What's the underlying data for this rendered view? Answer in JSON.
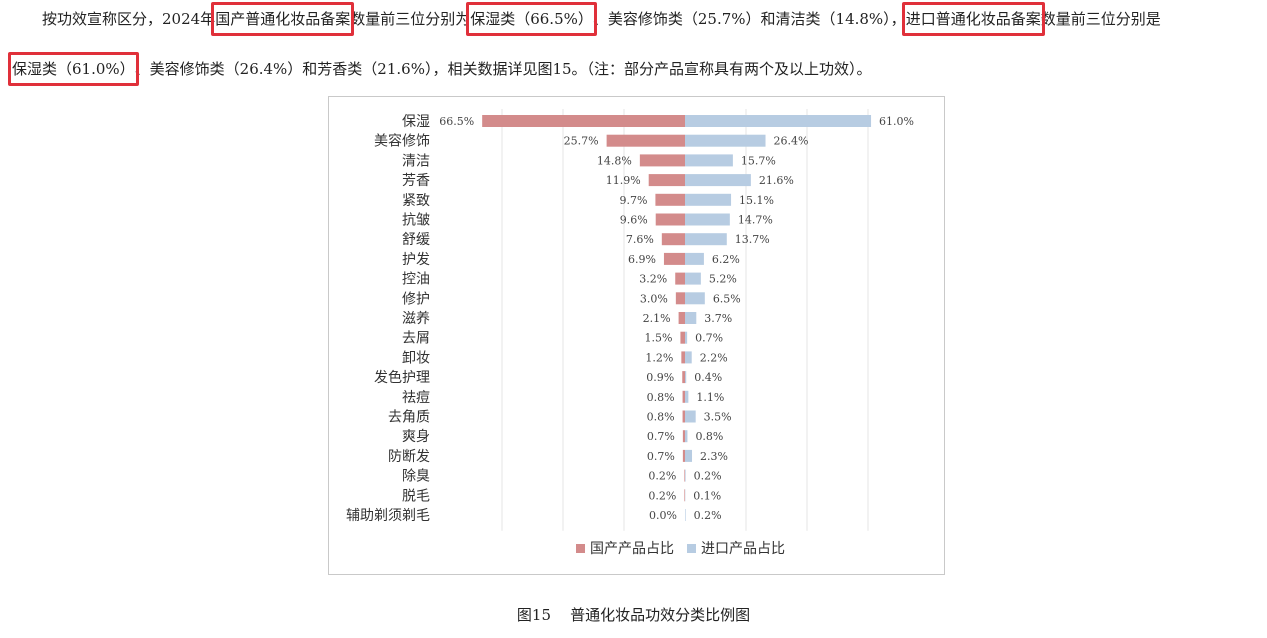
{
  "paragraph": {
    "line1": {
      "a": "按功效宣称区分，2024年",
      "hl1": "国产普通化妆品备案",
      "b": "数量前三位分别为",
      "hl2": "保湿类（66.5%）",
      "c": "、美容修饰类（25.7%）和清洁类（14.8%），",
      "hl3": "进口普通化妆品备案",
      "d": "数量前三位分别是"
    },
    "line2": {
      "hl4": "保湿类（61.0%）",
      "e": "、美容修饰类（26.4%）和芳香类（21.6%），相关数据详见图15。（注：部分产品宣称具有两个及以上功效）。"
    }
  },
  "caption": "图15    普通化妆品功效分类比例图",
  "chart_data": {
    "type": "bar",
    "orientation": "horizontal-diverging",
    "categories": [
      "保湿",
      "美容修饰",
      "清洁",
      "芳香",
      "紧致",
      "抗皱",
      "舒缓",
      "护发",
      "控油",
      "修护",
      "滋养",
      "去屑",
      "卸妆",
      "发色护理",
      "祛痘",
      "去角质",
      "爽身",
      "防断发",
      "除臭",
      "脱毛",
      "辅助剃须剃毛"
    ],
    "series": [
      {
        "name": "国产产品占比",
        "color": "#d38b8b",
        "side": "left",
        "values": [
          66.5,
          25.7,
          14.8,
          11.9,
          9.7,
          9.6,
          7.6,
          6.9,
          3.2,
          3.0,
          2.1,
          1.5,
          1.2,
          0.9,
          0.8,
          0.8,
          0.7,
          0.7,
          0.2,
          0.2,
          0.0
        ],
        "labels": [
          "66.5%",
          "25.7%",
          "14.8%",
          "11.9%",
          "9.7%",
          "9.6%",
          "7.6%",
          "6.9%",
          "3.2%",
          "3.0%",
          "2.1%",
          "1.5%",
          "1.2%",
          "0.9%",
          "0.8%",
          "0.8%",
          "0.7%",
          "0.7%",
          "0.2%",
          "0.2%",
          "0.0%"
        ]
      },
      {
        "name": "进口产品占比",
        "color": "#b7cce2",
        "side": "right",
        "values": [
          61.0,
          26.4,
          15.7,
          21.6,
          15.1,
          14.7,
          13.7,
          6.2,
          5.2,
          6.5,
          3.7,
          0.7,
          2.2,
          0.4,
          1.1,
          3.5,
          0.8,
          2.3,
          0.2,
          0.1,
          0.2
        ],
        "labels": [
          "61.0%",
          "26.4%",
          "15.7%",
          "21.6%",
          "15.1%",
          "14.7%",
          "13.7%",
          "6.2%",
          "5.2%",
          "6.5%",
          "3.7%",
          "0.7%",
          "2.2%",
          "0.4%",
          "1.1%",
          "3.5%",
          "0.8%",
          "2.3%",
          "0.2%",
          "0.1%",
          "0.2%"
        ]
      }
    ],
    "xlim": [
      -70,
      70
    ],
    "grid": true,
    "legend": "bottom-center"
  }
}
